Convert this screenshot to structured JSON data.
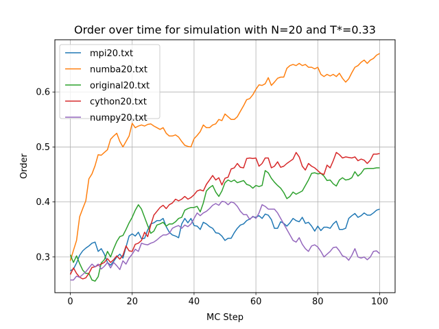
{
  "chart_data": {
    "type": "line",
    "title": "Order over time for simulation with N=20 and T*=0.33",
    "xlabel": "MC Step",
    "ylabel": "Order",
    "xlim": [
      -5,
      105
    ],
    "ylim": [
      0.235,
      0.695
    ],
    "xticks": [
      0,
      20,
      40,
      60,
      80,
      100
    ],
    "yticks": [
      0.3,
      0.4,
      0.5,
      0.6
    ],
    "ytick_labels": [
      "0.3",
      "0.4",
      "0.5",
      "0.6"
    ],
    "grid": true,
    "legend_position": "upper-left",
    "series": [
      {
        "name": "mpi20.txt",
        "color": "#1f77b4",
        "x": [
          0,
          1,
          2,
          3,
          4,
          5,
          6,
          7,
          8,
          9,
          10,
          11,
          12,
          13,
          14,
          15,
          16,
          17,
          18,
          19,
          20,
          21,
          22,
          23,
          24,
          25,
          26,
          27,
          28,
          29,
          30,
          31,
          32,
          33,
          34,
          35,
          36,
          37,
          38,
          39,
          40,
          41,
          42,
          43,
          44,
          45,
          46,
          47,
          48,
          49,
          50,
          51,
          52,
          53,
          54,
          55,
          56,
          57,
          58,
          59,
          60,
          61,
          62,
          63,
          64,
          65,
          66,
          67,
          68,
          69,
          70,
          71,
          72,
          73,
          74,
          75,
          76,
          77,
          78,
          79,
          80,
          81,
          82,
          83,
          84,
          85,
          86,
          87,
          88,
          89,
          90,
          91,
          92,
          93,
          94,
          95,
          96,
          97,
          98,
          99,
          100
        ],
        "y": [
          0.275,
          0.278,
          0.289,
          0.303,
          0.311,
          0.316,
          0.32,
          0.325,
          0.327,
          0.31,
          0.315,
          0.305,
          0.29,
          0.285,
          0.292,
          0.3,
          0.305,
          0.298,
          0.318,
          0.338,
          0.342,
          0.338,
          0.345,
          0.333,
          0.334,
          0.349,
          0.36,
          0.362,
          0.366,
          0.366,
          0.37,
          0.355,
          0.345,
          0.34,
          0.338,
          0.335,
          0.36,
          0.37,
          0.362,
          0.37,
          0.357,
          0.356,
          0.35,
          0.363,
          0.36,
          0.355,
          0.352,
          0.344,
          0.343,
          0.338,
          0.33,
          0.334,
          0.334,
          0.344,
          0.352,
          0.358,
          0.36,
          0.366,
          0.369,
          0.373,
          0.372,
          0.375,
          0.37,
          0.378,
          0.376,
          0.368,
          0.352,
          0.352,
          0.364,
          0.361,
          0.356,
          0.362,
          0.37,
          0.366,
          0.364,
          0.372,
          0.361,
          0.363,
          0.356,
          0.347,
          0.356,
          0.348,
          0.354,
          0.354,
          0.352,
          0.36,
          0.365,
          0.35,
          0.35,
          0.352,
          0.37,
          0.375,
          0.379,
          0.372,
          0.375,
          0.38,
          0.376,
          0.376,
          0.38,
          0.385,
          0.387
        ]
      },
      {
        "name": "numba20.txt",
        "color": "#ff7f0e",
        "x": [
          0,
          1,
          2,
          3,
          4,
          5,
          6,
          7,
          8,
          9,
          10,
          11,
          12,
          13,
          14,
          15,
          16,
          17,
          18,
          19,
          20,
          21,
          22,
          23,
          24,
          25,
          26,
          27,
          28,
          29,
          30,
          31,
          32,
          33,
          34,
          35,
          36,
          37,
          38,
          39,
          40,
          41,
          42,
          43,
          44,
          45,
          46,
          47,
          48,
          49,
          50,
          51,
          52,
          53,
          54,
          55,
          56,
          57,
          58,
          59,
          60,
          61,
          62,
          63,
          64,
          65,
          66,
          67,
          68,
          69,
          70,
          71,
          72,
          73,
          74,
          75,
          76,
          77,
          78,
          79,
          80,
          81,
          82,
          83,
          84,
          85,
          86,
          87,
          88,
          89,
          90,
          91,
          92,
          93,
          94,
          95,
          96,
          97,
          98,
          99,
          100
        ],
        "y": [
          0.293,
          0.312,
          0.33,
          0.373,
          0.388,
          0.402,
          0.442,
          0.451,
          0.466,
          0.486,
          0.485,
          0.49,
          0.495,
          0.514,
          0.52,
          0.525,
          0.51,
          0.5,
          0.51,
          0.52,
          0.543,
          0.535,
          0.538,
          0.54,
          0.538,
          0.541,
          0.542,
          0.538,
          0.535,
          0.532,
          0.535,
          0.525,
          0.52,
          0.52,
          0.522,
          0.518,
          0.51,
          0.503,
          0.501,
          0.5,
          0.515,
          0.521,
          0.528,
          0.54,
          0.535,
          0.535,
          0.54,
          0.542,
          0.55,
          0.548,
          0.56,
          0.555,
          0.55,
          0.55,
          0.555,
          0.565,
          0.575,
          0.586,
          0.588,
          0.595,
          0.605,
          0.613,
          0.612,
          0.615,
          0.626,
          0.612,
          0.618,
          0.625,
          0.627,
          0.627,
          0.643,
          0.648,
          0.65,
          0.648,
          0.652,
          0.648,
          0.65,
          0.645,
          0.645,
          0.642,
          0.645,
          0.632,
          0.628,
          0.632,
          0.629,
          0.632,
          0.628,
          0.634,
          0.625,
          0.618,
          0.624,
          0.635,
          0.645,
          0.648,
          0.654,
          0.658,
          0.652,
          0.658,
          0.661,
          0.667,
          0.67
        ]
      },
      {
        "name": "original20.txt",
        "color": "#2ca02c",
        "x": [
          0,
          1,
          2,
          3,
          4,
          5,
          6,
          7,
          8,
          9,
          10,
          11,
          12,
          13,
          14,
          15,
          16,
          17,
          18,
          19,
          20,
          21,
          22,
          23,
          24,
          25,
          26,
          27,
          28,
          29,
          30,
          31,
          32,
          33,
          34,
          35,
          36,
          37,
          38,
          39,
          40,
          41,
          42,
          43,
          44,
          45,
          46,
          47,
          48,
          49,
          50,
          51,
          52,
          53,
          54,
          55,
          56,
          57,
          58,
          59,
          60,
          61,
          62,
          63,
          64,
          65,
          66,
          67,
          68,
          69,
          70,
          71,
          72,
          73,
          74,
          75,
          76,
          77,
          78,
          79,
          80,
          81,
          82,
          83,
          84,
          85,
          86,
          87,
          88,
          89,
          90,
          91,
          92,
          93,
          94,
          95,
          96,
          97,
          98,
          99,
          100
        ],
        "y": [
          0.304,
          0.29,
          0.302,
          0.288,
          0.276,
          0.27,
          0.27,
          0.258,
          0.256,
          0.264,
          0.289,
          0.295,
          0.31,
          0.3,
          0.315,
          0.328,
          0.337,
          0.339,
          0.35,
          0.362,
          0.372,
          0.385,
          0.395,
          0.387,
          0.372,
          0.357,
          0.343,
          0.347,
          0.358,
          0.36,
          0.363,
          0.356,
          0.36,
          0.36,
          0.364,
          0.37,
          0.372,
          0.385,
          0.388,
          0.39,
          0.39,
          0.392,
          0.382,
          0.398,
          0.42,
          0.426,
          0.43,
          0.418,
          0.41,
          0.42,
          0.435,
          0.44,
          0.437,
          0.44,
          0.435,
          0.437,
          0.439,
          0.432,
          0.43,
          0.425,
          0.43,
          0.428,
          0.43,
          0.457,
          0.453,
          0.443,
          0.436,
          0.43,
          0.425,
          0.417,
          0.406,
          0.41,
          0.418,
          0.414,
          0.417,
          0.42,
          0.43,
          0.44,
          0.452,
          0.453,
          0.451,
          0.452,
          0.447,
          0.439,
          0.44,
          0.433,
          0.429,
          0.44,
          0.444,
          0.44,
          0.441,
          0.444,
          0.455,
          0.447,
          0.452,
          0.46,
          0.461,
          0.461,
          0.461,
          0.462,
          0.462
        ]
      },
      {
        "name": "cython20.txt",
        "color": "#d62728",
        "x": [
          0,
          1,
          2,
          3,
          4,
          5,
          6,
          7,
          8,
          9,
          10,
          11,
          12,
          13,
          14,
          15,
          16,
          17,
          18,
          19,
          20,
          21,
          22,
          23,
          24,
          25,
          26,
          27,
          28,
          29,
          30,
          31,
          32,
          33,
          34,
          35,
          36,
          37,
          38,
          39,
          40,
          41,
          42,
          43,
          44,
          45,
          46,
          47,
          48,
          49,
          50,
          51,
          52,
          53,
          54,
          55,
          56,
          57,
          58,
          59,
          60,
          61,
          62,
          63,
          64,
          65,
          66,
          67,
          68,
          69,
          70,
          71,
          72,
          73,
          74,
          75,
          76,
          77,
          78,
          79,
          80,
          81,
          82,
          83,
          84,
          85,
          86,
          87,
          88,
          89,
          90,
          91,
          92,
          93,
          94,
          95,
          96,
          97,
          98,
          99,
          100
        ],
        "y": [
          0.268,
          0.28,
          0.27,
          0.263,
          0.26,
          0.262,
          0.27,
          0.281,
          0.282,
          0.285,
          0.287,
          0.29,
          0.297,
          0.29,
          0.295,
          0.302,
          0.296,
          0.303,
          0.32,
          0.311,
          0.31,
          0.323,
          0.325,
          0.33,
          0.345,
          0.337,
          0.358,
          0.376,
          0.383,
          0.39,
          0.394,
          0.388,
          0.395,
          0.398,
          0.405,
          0.402,
          0.405,
          0.41,
          0.405,
          0.408,
          0.413,
          0.42,
          0.422,
          0.42,
          0.432,
          0.44,
          0.448,
          0.44,
          0.444,
          0.431,
          0.443,
          0.445,
          0.46,
          0.462,
          0.47,
          0.463,
          0.462,
          0.479,
          0.48,
          0.479,
          0.48,
          0.465,
          0.47,
          0.48,
          0.48,
          0.462,
          0.465,
          0.473,
          0.463,
          0.465,
          0.47,
          0.474,
          0.478,
          0.49,
          0.482,
          0.465,
          0.458,
          0.47,
          0.465,
          0.462,
          0.457,
          0.452,
          0.45,
          0.467,
          0.462,
          0.475,
          0.49,
          0.486,
          0.48,
          0.482,
          0.481,
          0.48,
          0.482,
          0.475,
          0.478,
          0.476,
          0.47,
          0.476,
          0.487,
          0.487,
          0.488
        ]
      },
      {
        "name": "numpy20.txt",
        "color": "#9467bd",
        "x": [
          0,
          1,
          2,
          3,
          4,
          5,
          6,
          7,
          8,
          9,
          10,
          11,
          12,
          13,
          14,
          15,
          16,
          17,
          18,
          19,
          20,
          21,
          22,
          23,
          24,
          25,
          26,
          27,
          28,
          29,
          30,
          31,
          32,
          33,
          34,
          35,
          36,
          37,
          38,
          39,
          40,
          41,
          42,
          43,
          44,
          45,
          46,
          47,
          48,
          49,
          50,
          51,
          52,
          53,
          54,
          55,
          56,
          57,
          58,
          59,
          60,
          61,
          62,
          63,
          64,
          65,
          66,
          67,
          68,
          69,
          70,
          71,
          72,
          73,
          74,
          75,
          76,
          77,
          78,
          79,
          80,
          81,
          82,
          83,
          84,
          85,
          86,
          87,
          88,
          89,
          90,
          91,
          92,
          93,
          94,
          95,
          96,
          97,
          98,
          99,
          100
        ],
        "y": [
          0.258,
          0.258,
          0.265,
          0.263,
          0.268,
          0.273,
          0.28,
          0.287,
          0.282,
          0.287,
          0.278,
          0.283,
          0.29,
          0.28,
          0.29,
          0.284,
          0.277,
          0.293,
          0.287,
          0.298,
          0.305,
          0.314,
          0.31,
          0.325,
          0.323,
          0.322,
          0.325,
          0.327,
          0.331,
          0.336,
          0.34,
          0.34,
          0.343,
          0.352,
          0.355,
          0.357,
          0.352,
          0.358,
          0.355,
          0.36,
          0.37,
          0.38,
          0.375,
          0.38,
          0.383,
          0.388,
          0.394,
          0.397,
          0.394,
          0.401,
          0.4,
          0.395,
          0.4,
          0.398,
          0.392,
          0.383,
          0.377,
          0.377,
          0.368,
          0.374,
          0.37,
          0.38,
          0.395,
          0.392,
          0.387,
          0.387,
          0.387,
          0.38,
          0.37,
          0.36,
          0.35,
          0.34,
          0.33,
          0.327,
          0.335,
          0.323,
          0.315,
          0.31,
          0.32,
          0.322,
          0.318,
          0.31,
          0.3,
          0.305,
          0.31,
          0.317,
          0.318,
          0.311,
          0.302,
          0.3,
          0.294,
          0.303,
          0.315,
          0.3,
          0.298,
          0.3,
          0.295,
          0.3,
          0.31,
          0.311,
          0.306
        ]
      }
    ]
  }
}
